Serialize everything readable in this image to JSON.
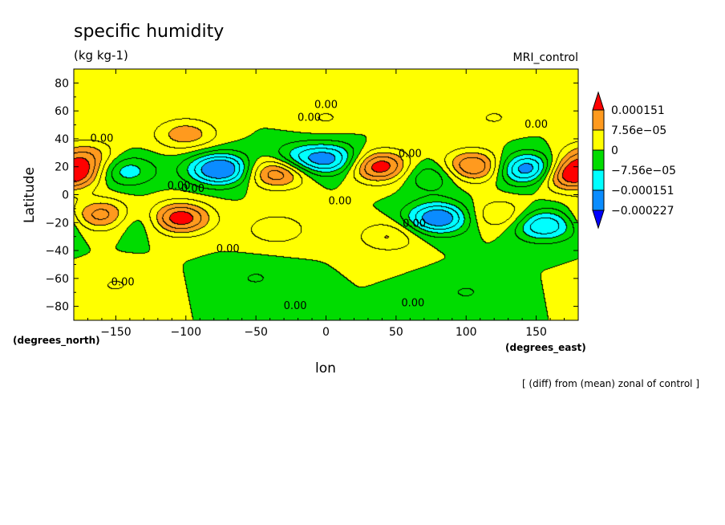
{
  "chart_data": {
    "type": "heatmap",
    "title": "specific humidity",
    "units": "(kg kg-1)",
    "run_label": "MRI_control",
    "xlabel": "lon",
    "ylabel": "Latitude",
    "x_unit_label": "(degrees_east)",
    "y_unit_label": "(degrees_north)",
    "note": "[ (diff) from (mean) zonal of control ]",
    "xlim": [
      -180,
      180
    ],
    "ylim": [
      -90,
      90
    ],
    "xticks": [
      -150,
      -100,
      -50,
      0,
      50,
      100,
      150
    ],
    "xtick_labels": [
      "−150",
      "−100",
      "−50",
      "0",
      "50",
      "100",
      "150"
    ],
    "yticks": [
      80,
      60,
      40,
      20,
      0,
      -20,
      -40,
      -60,
      -80
    ],
    "ytick_labels": [
      "80",
      "60",
      "40",
      "20",
      "0",
      "−20",
      "−40",
      "−60",
      "−80"
    ],
    "colorbar": {
      "levels": [
        "0.000151",
        "7.56e−05",
        "0",
        "−7.56e−05",
        "−0.000151",
        "−0.000227"
      ],
      "colors": [
        "#ff0000",
        "#ff9a1e",
        "#ffff00",
        "#00dc00",
        "#00ffff",
        "#0a8cff",
        "#0000ff"
      ],
      "extend": "both"
    },
    "contour_labels": [
      "0.00"
    ],
    "anomalies": [
      {
        "lon": 38,
        "lat": 20,
        "value": 0.00019
      },
      {
        "lon": 105,
        "lat": 20,
        "value": 0.00017
      },
      {
        "lon": -35,
        "lat": 16,
        "value": 0.00017
      },
      {
        "lon": -105,
        "lat": -17,
        "value": 0.00019
      },
      {
        "lon": -158,
        "lat": -15,
        "value": 0.00015
      },
      {
        "lon": 170,
        "lat": 13,
        "value": 0.00013
      },
      {
        "lon": -177,
        "lat": 17,
        "value": 0.00012
      },
      {
        "lon": -100,
        "lat": 43,
        "value": 0.0001
      },
      {
        "lon": -170,
        "lat": 28,
        "value": 9e-05
      },
      {
        "lon": 45,
        "lat": -30,
        "value": 8e-05
      },
      {
        "lon": -35,
        "lat": -25,
        "value": 7e-05
      },
      {
        "lon": 125,
        "lat": -15,
        "value": 9e-05
      },
      {
        "lon": -75,
        "lat": 18,
        "value": -0.00022
      },
      {
        "lon": 5,
        "lat": 25,
        "value": -0.00015
      },
      {
        "lon": 145,
        "lat": 18,
        "value": -0.00021
      },
      {
        "lon": 80,
        "lat": -17,
        "value": -0.0002
      },
      {
        "lon": 155,
        "lat": -22,
        "value": -0.00016
      },
      {
        "lon": -145,
        "lat": 17,
        "value": -0.00011
      },
      {
        "lon": 75,
        "lat": 14,
        "value": -9e-05
      },
      {
        "lon": -135,
        "lat": -18,
        "value": -8e-05
      },
      {
        "lon": -20,
        "lat": 25,
        "value": -0.00011
      },
      {
        "lon": 0,
        "lat": 55,
        "value": 4e-05
      },
      {
        "lon": 120,
        "lat": 55,
        "value": 4e-05
      },
      {
        "lon": -50,
        "lat": -60,
        "value": -4e-05
      },
      {
        "lon": 100,
        "lat": -70,
        "value": -4e-05
      },
      {
        "lon": -150,
        "lat": -65,
        "value": 4e-05
      }
    ]
  }
}
